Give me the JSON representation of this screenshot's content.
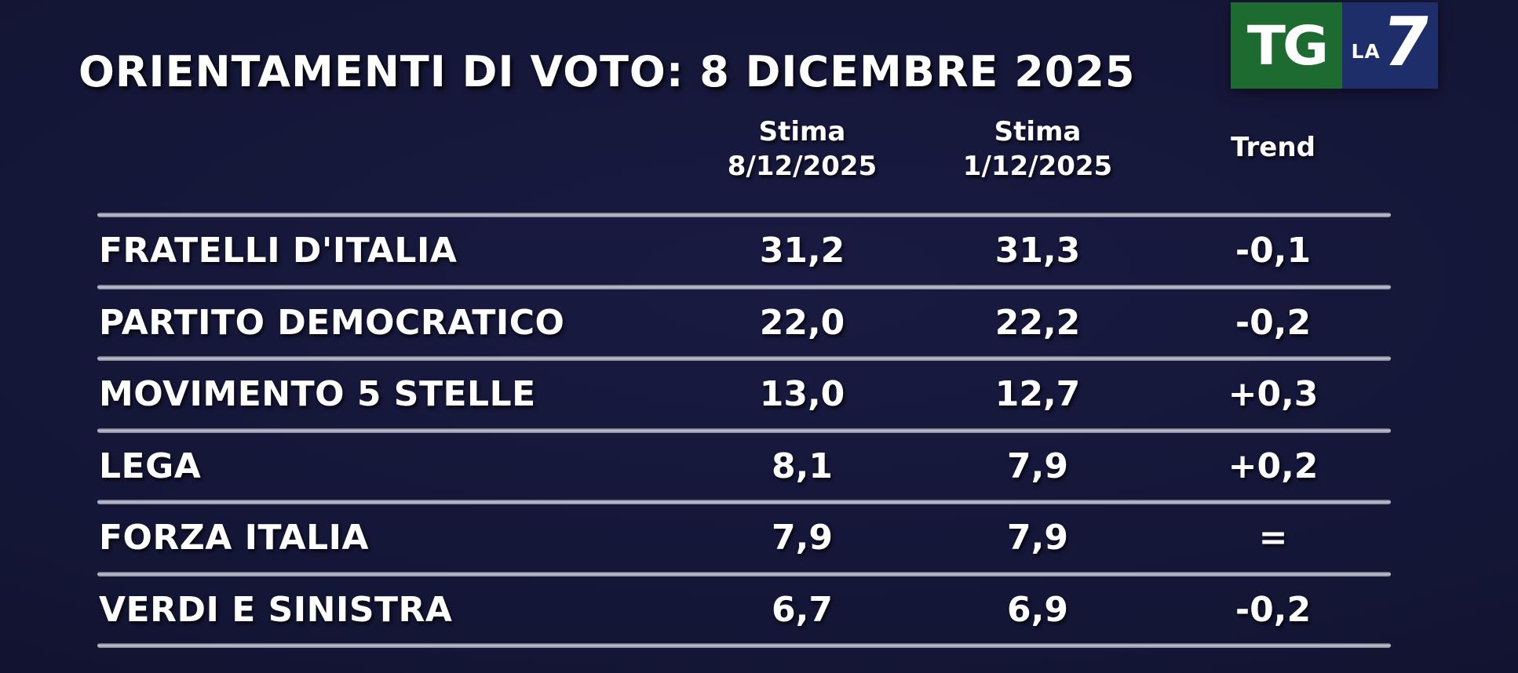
{
  "title": "ORIENTAMENTI DI VOTO: 8 DICEMBRE 2025",
  "logo": {
    "tg": "TG",
    "la": "LA",
    "seven": "7"
  },
  "colors": {
    "background": "#141636",
    "logo_green": "#1e6b31",
    "logo_blue": "#1d2e6b",
    "text": "#ffffff",
    "separator": "#a7aab8"
  },
  "table": {
    "headers": {
      "stima_current_line1": "Stima",
      "stima_current_line2": "8/12/2025",
      "stima_previous_line1": "Stima",
      "stima_previous_line2": "1/12/2025",
      "trend": "Trend"
    },
    "rows": [
      {
        "party": "FRATELLI D'ITALIA",
        "stima_8_12": "31,2",
        "stima_1_12": "31,3",
        "trend": "-0,1"
      },
      {
        "party": "PARTITO DEMOCRATICO",
        "stima_8_12": "22,0",
        "stima_1_12": "22,2",
        "trend": "-0,2"
      },
      {
        "party": "MOVIMENTO 5 STELLE",
        "stima_8_12": "13,0",
        "stima_1_12": "12,7",
        "trend": "+0,3"
      },
      {
        "party": "LEGA",
        "stima_8_12": "8,1",
        "stima_1_12": "7,9",
        "trend": "+0,2"
      },
      {
        "party": "FORZA ITALIA",
        "stima_8_12": "7,9",
        "stima_1_12": "7,9",
        "trend": "="
      },
      {
        "party": "VERDI E SINISTRA",
        "stima_8_12": "6,7",
        "stima_1_12": "6,9",
        "trend": "-0,2"
      }
    ]
  },
  "chart_data": {
    "type": "table",
    "title": "ORIENTAMENTI DI VOTO: 8 DICEMBRE 2025",
    "columns": [
      "Partito",
      "Stima 8/12/2025",
      "Stima 1/12/2025",
      "Trend"
    ],
    "rows": [
      [
        "FRATELLI D'ITALIA",
        31.2,
        31.3,
        -0.1
      ],
      [
        "PARTITO DEMOCRATICO",
        22.0,
        22.2,
        -0.2
      ],
      [
        "MOVIMENTO 5 STELLE",
        13.0,
        12.7,
        0.3
      ],
      [
        "LEGA",
        8.1,
        7.9,
        0.2
      ],
      [
        "FORZA ITALIA",
        7.9,
        7.9,
        "="
      ],
      [
        "VERDI E SINISTRA",
        6.7,
        6.9,
        -0.2
      ]
    ],
    "source": "TG La7 poll graphic"
  }
}
